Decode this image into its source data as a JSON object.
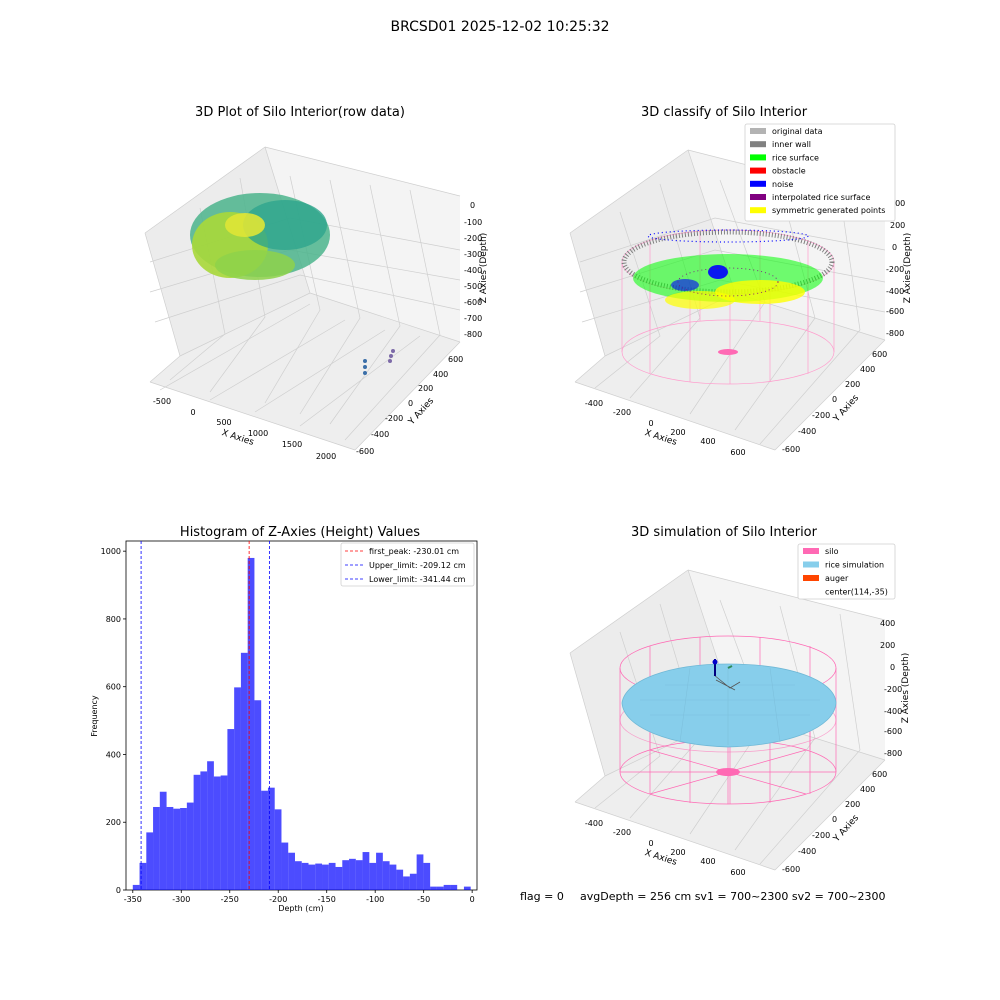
{
  "figure": {
    "suptitle": "BRCSD01 2025-12-02 10:25:32",
    "footer": {
      "flag": "flag = 0",
      "info": "avgDepth = 256 cm  sv1 = 700~2300  sv2 = 700~2300"
    }
  },
  "panels": {
    "raw": {
      "title": "3D Plot of Silo Interior(row data)",
      "xlabel": "X Axies",
      "ylabel": "Y Axies",
      "zlabel": "Z Axies (Depth)",
      "xticks": [
        "-500",
        "0",
        "500",
        "1000",
        "1500",
        "2000"
      ],
      "yticks": [
        "600",
        "400",
        "200",
        "0",
        "-200",
        "-400",
        "-600"
      ],
      "zticks": [
        "0",
        "-100",
        "-200",
        "-300",
        "-400",
        "-500",
        "-600",
        "-700",
        "-800"
      ]
    },
    "classify": {
      "title": "3D classify of Silo Interior",
      "xlabel": "X Axies",
      "ylabel": "Y Axies",
      "zlabel": "Z Axies (Depth)",
      "xticks": [
        "-400",
        "-200",
        "0",
        "200",
        "400",
        "600"
      ],
      "yticks": [
        "600",
        "400",
        "200",
        "0",
        "-200",
        "-400",
        "-600"
      ],
      "zticks": [
        "400",
        "200",
        "0",
        "-200",
        "-400",
        "-600",
        "-800"
      ],
      "legend": [
        {
          "label": "original data",
          "color": "#b3b3b3"
        },
        {
          "label": "inner wall",
          "color": "#808080"
        },
        {
          "label": "rice surface",
          "color": "#00ff00"
        },
        {
          "label": "obstacle",
          "color": "#ff0000"
        },
        {
          "label": "noise",
          "color": "#0000ff"
        },
        {
          "label": "interpolated rice surface",
          "color": "#800080"
        },
        {
          "label": "symmetric generated points",
          "color": "#ffff00"
        }
      ]
    },
    "simulation": {
      "title": "3D simulation of Silo Interior",
      "xlabel": "X Axies",
      "ylabel": "Y Axies",
      "zlabel": "Z Axies (Depth)",
      "xticks": [
        "-400",
        "-200",
        "0",
        "200",
        "400",
        "600"
      ],
      "yticks": [
        "600",
        "400",
        "200",
        "0",
        "-200",
        "-400",
        "-600"
      ],
      "zticks": [
        "400",
        "200",
        "0",
        "-200",
        "-400",
        "-600",
        "-800"
      ],
      "legend": [
        {
          "label": "silo",
          "color": "#ff69b4"
        },
        {
          "label": "rice simulation",
          "color": "#87ceeb"
        },
        {
          "label": "auger",
          "color": "#ff4500"
        },
        {
          "label": "center(114,-35)",
          "color": ""
        }
      ]
    }
  },
  "chart_data": [
    {
      "type": "bar",
      "title": "Histogram of Z-Axies (Height) Values",
      "xlabel": "Depth (cm)",
      "ylabel": "Frequency",
      "xlim": [
        -357,
        5
      ],
      "ylim": [
        0,
        1030
      ],
      "xticks": [
        -350,
        -300,
        -250,
        -200,
        -150,
        -100,
        -50,
        0
      ],
      "yticks": [
        0,
        200,
        400,
        600,
        800,
        1000
      ],
      "bar_color": "#0000ff",
      "bins": {
        "start": -350,
        "width": 6.97,
        "values": [
          15,
          80,
          170,
          245,
          290,
          245,
          240,
          242,
          258,
          340,
          350,
          380,
          335,
          338,
          475,
          598,
          700,
          980,
          560,
          293,
          302,
          238,
          140,
          110,
          85,
          80,
          75,
          78,
          75,
          80,
          68,
          88,
          92,
          88,
          112,
          80,
          110,
          85,
          75,
          60,
          40,
          48,
          105,
          80,
          10,
          10,
          15,
          15,
          0,
          10
        ]
      },
      "lines": [
        {
          "label": "first_peak: -230.01 cm",
          "x": -230.01,
          "color": "#ff0000"
        },
        {
          "label": "Upper_limit: -209.12 cm",
          "x": -209.12,
          "color": "#0000ff"
        },
        {
          "label": "Lower_limit: -341.44 cm",
          "x": -341.44,
          "color": "#0000ff"
        }
      ]
    }
  ]
}
